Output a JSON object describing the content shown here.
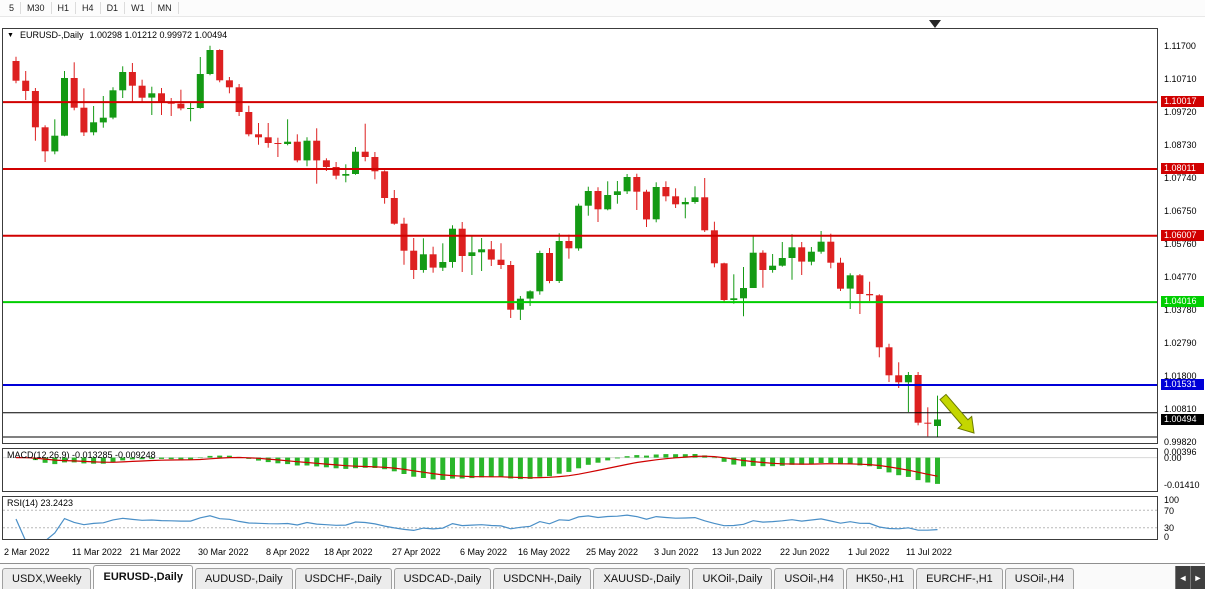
{
  "colors": {
    "up": "#149a14",
    "down": "#dd2020",
    "macd_hist": "#2ab62a",
    "macd_signal": "#cf0000",
    "rsi_line": "#4a8fc7",
    "arrow_fill": "#c4d600",
    "arrow_stroke": "#6b7a00",
    "level_red": "#d10000",
    "level_green": "#00ce00",
    "level_blue": "#0000d8",
    "level_black": "#000000",
    "current_tag_bg": "#000000"
  },
  "toolbar": {
    "periods": [
      "5",
      "M30",
      "H1",
      "H4",
      "D1",
      "W1",
      "MN"
    ]
  },
  "chart": {
    "dropdown_icon": "▼",
    "symbol_label": "EURUSD-,Daily",
    "ohlc_label": "1.00298 1.01212 0.99972 1.00494"
  },
  "chart_data": {
    "type": "candlestick",
    "symbol": "EURUSD-",
    "timeframe": "Daily",
    "displayed_bar": {
      "open": 1.00298,
      "high": 1.01212,
      "low": 0.99972,
      "close": 1.00494
    },
    "y_ticks": [
      "1.11700",
      "1.10710",
      "1.09720",
      "1.08730",
      "1.07740",
      "1.06750",
      "1.05760",
      "1.04770",
      "1.03780",
      "1.02790",
      "1.01800",
      "1.00810",
      "0.99820"
    ],
    "x_ticks": [
      {
        "label": "2 Mar 2022",
        "i": 0
      },
      {
        "label": "11 Mar 2022",
        "i": 7
      },
      {
        "label": "21 Mar 2022",
        "i": 13
      },
      {
        "label": "30 Mar 2022",
        "i": 20
      },
      {
        "label": "8 Apr 2022",
        "i": 27
      },
      {
        "label": "18 Apr 2022",
        "i": 33
      },
      {
        "label": "27 Apr 2022",
        "i": 40
      },
      {
        "label": "6 May 2022",
        "i": 47
      },
      {
        "label": "16 May 2022",
        "i": 53
      },
      {
        "label": "25 May 2022",
        "i": 60
      },
      {
        "label": "3 Jun 2022",
        "i": 67
      },
      {
        "label": "13 Jun 2022",
        "i": 73
      },
      {
        "label": "22 Jun 2022",
        "i": 80
      },
      {
        "label": "1 Jul 2022",
        "i": 87
      },
      {
        "label": "11 Jul 2022",
        "i": 93
      }
    ],
    "levels": [
      {
        "price": 1.10017,
        "label": "1.10017",
        "color": "#d10000"
      },
      {
        "price": 1.08011,
        "label": "1.08011",
        "color": "#d10000"
      },
      {
        "price": 1.06007,
        "label": "1.06007",
        "color": "#d10000"
      },
      {
        "price": 1.04016,
        "label": "1.04016",
        "color": "#00ce00"
      },
      {
        "price": 1.01531,
        "label": "1.01531",
        "color": "#0000d8"
      },
      {
        "price": 1.007,
        "label": null,
        "color": "#000000"
      },
      {
        "price": 0.9997,
        "label": null,
        "color": "#000000"
      }
    ],
    "price_tag": {
      "price": 1.00494,
      "label": "1.00494"
    },
    "candles": [
      [
        1.1125,
        1.1138,
        1.1058,
        1.1066
      ],
      [
        1.1066,
        1.1095,
        1.1008,
        1.1035
      ],
      [
        1.1035,
        1.1044,
        1.0886,
        1.0926
      ],
      [
        1.0926,
        1.0932,
        1.0822,
        1.0854
      ],
      [
        1.0854,
        1.095,
        1.0845,
        1.0901
      ],
      [
        1.0901,
        1.1095,
        1.0899,
        1.1074
      ],
      [
        1.1074,
        1.1121,
        1.0977,
        1.0985
      ],
      [
        1.0985,
        1.1043,
        1.09,
        1.0911
      ],
      [
        1.0911,
        1.099,
        1.0902,
        1.0941
      ],
      [
        1.0941,
        1.102,
        1.0925,
        1.0955
      ],
      [
        1.0955,
        1.1046,
        1.095,
        1.1037
      ],
      [
        1.1037,
        1.1109,
        1.1014,
        1.1092
      ],
      [
        1.1092,
        1.1119,
        1.1003,
        1.1051
      ],
      [
        1.1051,
        1.1069,
        1.1,
        1.1015
      ],
      [
        1.1015,
        1.1048,
        1.0963,
        1.1028
      ],
      [
        1.1028,
        1.1044,
        1.0963,
        1.1003
      ],
      [
        1.1003,
        1.1014,
        1.096,
        1.0997
      ],
      [
        1.0997,
        1.1039,
        1.0977,
        1.0983
      ],
      [
        1.0983,
        1.1,
        1.0944,
        1.0984
      ],
      [
        1.0984,
        1.1137,
        1.0982,
        1.1086
      ],
      [
        1.1086,
        1.1171,
        1.1082,
        1.1158
      ],
      [
        1.1158,
        1.116,
        1.1061,
        1.1067
      ],
      [
        1.1067,
        1.1077,
        1.1028,
        1.1046
      ],
      [
        1.1046,
        1.1056,
        1.096,
        1.0972
      ],
      [
        1.0972,
        1.0991,
        1.0899,
        1.0905
      ],
      [
        1.0905,
        1.0939,
        1.0874,
        1.0896
      ],
      [
        1.0896,
        1.0939,
        1.0865,
        1.0879
      ],
      [
        1.0879,
        1.0895,
        1.0837,
        1.0876
      ],
      [
        1.0876,
        1.095,
        1.0872,
        1.0883
      ],
      [
        1.0883,
        1.0905,
        1.0821,
        1.0827
      ],
      [
        1.0827,
        1.0896,
        1.0809,
        1.0886
      ],
      [
        1.0886,
        1.0923,
        1.0757,
        1.0827
      ],
      [
        1.0827,
        1.0833,
        1.0795,
        1.0807
      ],
      [
        1.0807,
        1.0822,
        1.077,
        1.0781
      ],
      [
        1.0781,
        1.0815,
        1.0761,
        1.0786
      ],
      [
        1.0786,
        1.0867,
        1.0784,
        1.0853
      ],
      [
        1.0853,
        1.0937,
        1.0824,
        1.0837
      ],
      [
        1.0837,
        1.0852,
        1.077,
        1.0794
      ],
      [
        1.0794,
        1.0797,
        1.0697,
        1.0714
      ],
      [
        1.0714,
        1.0738,
        1.0634,
        1.0637
      ],
      [
        1.0637,
        1.0655,
        1.0514,
        1.0556
      ],
      [
        1.0556,
        1.0594,
        1.0471,
        1.0498
      ],
      [
        1.0498,
        1.0593,
        1.049,
        1.0545
      ],
      [
        1.0545,
        1.0568,
        1.049,
        1.0505
      ],
      [
        1.0505,
        1.0578,
        1.0495,
        1.0522
      ],
      [
        1.0522,
        1.0632,
        1.0505,
        1.0622
      ],
      [
        1.0622,
        1.0642,
        1.0492,
        1.054
      ],
      [
        1.054,
        1.0599,
        1.0483,
        1.0551
      ],
      [
        1.0551,
        1.0594,
        1.0495,
        1.056
      ],
      [
        1.056,
        1.0585,
        1.051,
        1.0529
      ],
      [
        1.0529,
        1.0578,
        1.0501,
        1.0513
      ],
      [
        1.0513,
        1.0525,
        1.0354,
        1.0379
      ],
      [
        1.0379,
        1.042,
        1.0348,
        1.0412
      ],
      [
        1.0412,
        1.0437,
        1.039,
        1.0434
      ],
      [
        1.0434,
        1.0556,
        1.0424,
        1.0549
      ],
      [
        1.0549,
        1.0564,
        1.0458,
        1.0465
      ],
      [
        1.0465,
        1.0608,
        1.0459,
        1.0585
      ],
      [
        1.0585,
        1.0604,
        1.0532,
        1.0563
      ],
      [
        1.0563,
        1.0697,
        1.0556,
        1.0691
      ],
      [
        1.0691,
        1.0748,
        1.0661,
        1.0735
      ],
      [
        1.0735,
        1.0746,
        1.0642,
        1.068
      ],
      [
        1.068,
        1.0764,
        1.0677,
        1.0723
      ],
      [
        1.0723,
        1.0765,
        1.0697,
        1.0734
      ],
      [
        1.0734,
        1.0786,
        1.0726,
        1.0777
      ],
      [
        1.0777,
        1.0787,
        1.0678,
        1.0733
      ],
      [
        1.0733,
        1.0739,
        1.0627,
        1.065
      ],
      [
        1.065,
        1.0761,
        1.0641,
        1.0747
      ],
      [
        1.0747,
        1.0764,
        1.0704,
        1.0719
      ],
      [
        1.0719,
        1.0743,
        1.0684,
        1.0695
      ],
      [
        1.0695,
        1.0715,
        1.0653,
        1.0702
      ],
      [
        1.0702,
        1.0749,
        1.0697,
        1.0716
      ],
      [
        1.0716,
        1.0774,
        1.0612,
        1.0617
      ],
      [
        1.0617,
        1.0643,
        1.0506,
        1.0518
      ],
      [
        1.0518,
        1.052,
        1.0399,
        1.0408
      ],
      [
        1.0408,
        1.0485,
        1.0397,
        1.0413
      ],
      [
        1.0413,
        1.0507,
        1.0359,
        1.0444
      ],
      [
        1.0444,
        1.0601,
        1.0444,
        1.055
      ],
      [
        1.055,
        1.0557,
        1.0445,
        1.0498
      ],
      [
        1.0498,
        1.0546,
        1.049,
        1.0511
      ],
      [
        1.0511,
        1.0582,
        1.0508,
        1.0534
      ],
      [
        1.0534,
        1.0605,
        1.0469,
        1.0566
      ],
      [
        1.0566,
        1.0582,
        1.0483,
        1.0523
      ],
      [
        1.0523,
        1.0567,
        1.0512,
        1.0553
      ],
      [
        1.0553,
        1.0615,
        1.0547,
        1.0583
      ],
      [
        1.0583,
        1.0607,
        1.0503,
        1.052
      ],
      [
        1.052,
        1.0535,
        1.0435,
        1.0442
      ],
      [
        1.0442,
        1.0488,
        1.0381,
        1.0482
      ],
      [
        1.0482,
        1.0486,
        1.0366,
        1.0426
      ],
      [
        1.0426,
        1.0463,
        1.0405,
        1.0422
      ],
      [
        1.0422,
        1.0425,
        1.0236,
        1.0266
      ],
      [
        1.0266,
        1.0277,
        1.0162,
        1.0182
      ],
      [
        1.0182,
        1.0221,
        1.0144,
        1.0161
      ],
      [
        1.0161,
        1.0192,
        1.0072,
        1.0183
      ],
      [
        1.0183,
        1.0192,
        1.0032,
        1.004
      ],
      [
        1.004,
        1.0086,
        0.9999,
        1.0037
      ],
      [
        1.00298,
        1.01212,
        0.99972,
        1.00494
      ]
    ],
    "macd": {
      "label": "MACD(12,26,9) -0.013285 -0.009248",
      "fast": 12,
      "slow": 26,
      "signal": 9,
      "axis": [
        "0.00396",
        "0.00",
        "-0.01410"
      ],
      "values_display": [
        -0.013285,
        -0.009248
      ]
    },
    "rsi": {
      "label": "RSI(14) 23.2423",
      "period": 14,
      "value_display": 23.2423,
      "axis": [
        "100",
        "70",
        "30",
        "0"
      ],
      "levels": [
        70,
        30
      ]
    },
    "objects": [
      {
        "type": "arrow",
        "direction": "down-right"
      }
    ]
  },
  "tabs": {
    "items": [
      {
        "label": "USDX,Weekly",
        "active": false
      },
      {
        "label": "EURUSD-,Daily",
        "active": true
      },
      {
        "label": "AUDUSD-,Daily",
        "active": false
      },
      {
        "label": "USDCHF-,Daily",
        "active": false
      },
      {
        "label": "USDCAD-,Daily",
        "active": false
      },
      {
        "label": "USDCNH-,Daily",
        "active": false
      },
      {
        "label": "XAUUSD-,Daily",
        "active": false
      },
      {
        "label": "UKOil-,Daily",
        "active": false
      },
      {
        "label": "USOil-,H4",
        "active": false
      },
      {
        "label": "HK50-,H1",
        "active": false
      },
      {
        "label": "EURCHF-,H1",
        "active": false
      },
      {
        "label": "USOil-,H4",
        "active": false
      }
    ],
    "scroll_left": "◄",
    "scroll_right": "►"
  }
}
